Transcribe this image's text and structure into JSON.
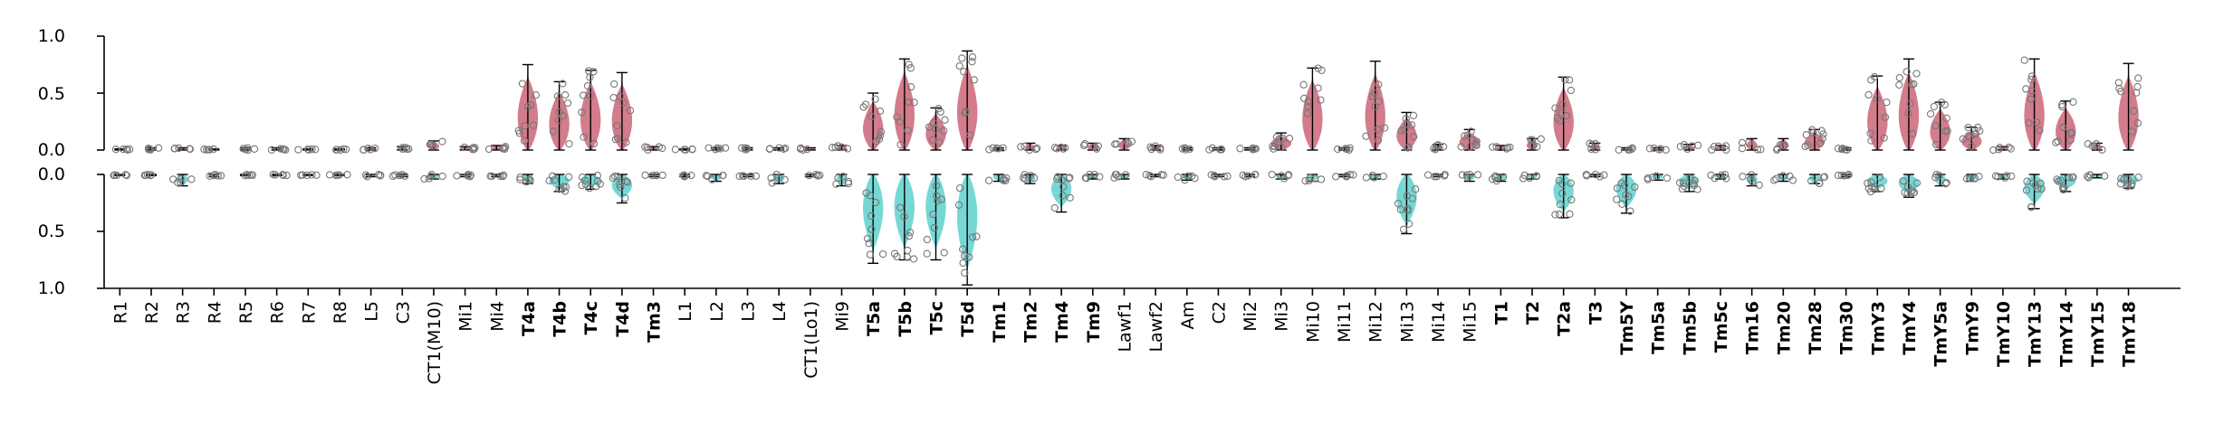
{
  "chart_data": {
    "type": "violin",
    "title": "",
    "xlabel": "",
    "ylabel": "",
    "layout": "mirrored-top-bottom",
    "top": {
      "ylim": [
        0,
        1.0
      ],
      "yticks": [
        "0.0",
        "0.5",
        "1.0"
      ],
      "color": "#c0455a"
    },
    "bottom": {
      "ylim": [
        0,
        1.0
      ],
      "yticks": [
        "0.0",
        "0.5",
        "1.0"
      ],
      "color": "#3cc8c3"
    },
    "label_colors": {
      "top": "#b0122d",
      "bottom": "#12b5ae",
      "default": "#000000"
    },
    "categories": [
      {
        "name": "R1",
        "bold": false,
        "hl": "none",
        "top": 0.01,
        "bottom": 0.01
      },
      {
        "name": "R2",
        "bold": false,
        "hl": "none",
        "top": 0.02,
        "bottom": 0.01
      },
      {
        "name": "R3",
        "bold": false,
        "hl": "none",
        "top": 0.02,
        "bottom": 0.1
      },
      {
        "name": "R4",
        "bold": false,
        "hl": "none",
        "top": 0.01,
        "bottom": 0.02
      },
      {
        "name": "R5",
        "bold": false,
        "hl": "none",
        "top": 0.02,
        "bottom": 0.01
      },
      {
        "name": "R6",
        "bold": false,
        "hl": "none",
        "top": 0.02,
        "bottom": 0.01
      },
      {
        "name": "R7",
        "bold": false,
        "hl": "none",
        "top": 0.01,
        "bottom": 0.01
      },
      {
        "name": "R8",
        "bold": false,
        "hl": "none",
        "top": 0.01,
        "bottom": 0.01
      },
      {
        "name": "L5",
        "bold": false,
        "hl": "none",
        "top": 0.02,
        "bottom": 0.02
      },
      {
        "name": "C3",
        "bold": false,
        "hl": "none",
        "top": 0.03,
        "bottom": 0.02
      },
      {
        "name": "CT1(M10)",
        "bold": false,
        "hl": "none",
        "top": 0.08,
        "bottom": 0.04
      },
      {
        "name": "Mi1",
        "bold": false,
        "hl": "none",
        "top": 0.03,
        "bottom": 0.02
      },
      {
        "name": "Mi4",
        "bold": false,
        "hl": "none",
        "top": 0.04,
        "bottom": 0.02
      },
      {
        "name": "T4a",
        "bold": true,
        "hl": "top",
        "top": 0.75,
        "bottom": 0.08
      },
      {
        "name": "T4b",
        "bold": true,
        "hl": "top",
        "top": 0.6,
        "bottom": 0.15
      },
      {
        "name": "T4c",
        "bold": true,
        "hl": "top",
        "top": 0.7,
        "bottom": 0.13
      },
      {
        "name": "T4d",
        "bold": true,
        "hl": "top",
        "top": 0.68,
        "bottom": 0.25
      },
      {
        "name": "Tm3",
        "bold": true,
        "hl": "none",
        "top": 0.03,
        "bottom": 0.02
      },
      {
        "name": "L1",
        "bold": false,
        "hl": "none",
        "top": 0.01,
        "bottom": 0.02
      },
      {
        "name": "L2",
        "bold": false,
        "hl": "none",
        "top": 0.02,
        "bottom": 0.06
      },
      {
        "name": "L3",
        "bold": false,
        "hl": "none",
        "top": 0.02,
        "bottom": 0.02
      },
      {
        "name": "L4",
        "bold": false,
        "hl": "none",
        "top": 0.02,
        "bottom": 0.08
      },
      {
        "name": "CT1(Lo1)",
        "bold": false,
        "hl": "none",
        "top": 0.02,
        "bottom": 0.02
      },
      {
        "name": "Mi9",
        "bold": false,
        "hl": "none",
        "top": 0.04,
        "bottom": 0.1
      },
      {
        "name": "T5a",
        "bold": true,
        "hl": "bottom",
        "top": 0.5,
        "bottom": 0.78
      },
      {
        "name": "T5b",
        "bold": true,
        "hl": "bottom",
        "top": 0.8,
        "bottom": 0.75
      },
      {
        "name": "T5c",
        "bold": true,
        "hl": "bottom",
        "top": 0.37,
        "bottom": 0.75
      },
      {
        "name": "T5d",
        "bold": true,
        "hl": "bottom",
        "top": 0.87,
        "bottom": 0.97
      },
      {
        "name": "Tm1",
        "bold": true,
        "hl": "none",
        "top": 0.02,
        "bottom": 0.06
      },
      {
        "name": "Tm2",
        "bold": true,
        "hl": "none",
        "top": 0.06,
        "bottom": 0.08
      },
      {
        "name": "Tm4",
        "bold": true,
        "hl": "none",
        "top": 0.04,
        "bottom": 0.33
      },
      {
        "name": "Tm9",
        "bold": true,
        "hl": "none",
        "top": 0.06,
        "bottom": 0.04
      },
      {
        "name": "Lawf1",
        "bold": false,
        "hl": "none",
        "top": 0.1,
        "bottom": 0.04
      },
      {
        "name": "Lawf2",
        "bold": false,
        "hl": "none",
        "top": 0.04,
        "bottom": 0.02
      },
      {
        "name": "Am",
        "bold": false,
        "hl": "none",
        "top": 0.02,
        "bottom": 0.05
      },
      {
        "name": "C2",
        "bold": false,
        "hl": "none",
        "top": 0.02,
        "bottom": 0.02
      },
      {
        "name": "Mi2",
        "bold": false,
        "hl": "none",
        "top": 0.02,
        "bottom": 0.02
      },
      {
        "name": "Mi3",
        "bold": false,
        "hl": "none",
        "top": 0.15,
        "bottom": 0.04
      },
      {
        "name": "Mi10",
        "bold": false,
        "hl": "none",
        "top": 0.72,
        "bottom": 0.06
      },
      {
        "name": "Mi11",
        "bold": false,
        "hl": "none",
        "top": 0.02,
        "bottom": 0.02
      },
      {
        "name": "Mi12",
        "bold": false,
        "hl": "none",
        "top": 0.78,
        "bottom": 0.04
      },
      {
        "name": "Mi13",
        "bold": false,
        "hl": "none",
        "top": 0.33,
        "bottom": 0.52
      },
      {
        "name": "Mi14",
        "bold": false,
        "hl": "none",
        "top": 0.05,
        "bottom": 0.02
      },
      {
        "name": "Mi15",
        "bold": false,
        "hl": "none",
        "top": 0.18,
        "bottom": 0.06
      },
      {
        "name": "T1",
        "bold": true,
        "hl": "none",
        "top": 0.04,
        "bottom": 0.06
      },
      {
        "name": "T2",
        "bold": true,
        "hl": "none",
        "top": 0.1,
        "bottom": 0.04
      },
      {
        "name": "T2a",
        "bold": true,
        "hl": "none",
        "top": 0.64,
        "bottom": 0.38
      },
      {
        "name": "T3",
        "bold": true,
        "hl": "none",
        "top": 0.06,
        "bottom": 0.02
      },
      {
        "name": "Tm5Y",
        "bold": true,
        "hl": "none",
        "top": 0.02,
        "bottom": 0.34
      },
      {
        "name": "Tm5a",
        "bold": true,
        "hl": "none",
        "top": 0.02,
        "bottom": 0.05
      },
      {
        "name": "Tm5b",
        "bold": true,
        "hl": "none",
        "top": 0.05,
        "bottom": 0.15
      },
      {
        "name": "Tm5c",
        "bold": true,
        "hl": "none",
        "top": 0.04,
        "bottom": 0.04
      },
      {
        "name": "Tm16",
        "bold": true,
        "hl": "none",
        "top": 0.1,
        "bottom": 0.1
      },
      {
        "name": "Tm20",
        "bold": true,
        "hl": "none",
        "top": 0.1,
        "bottom": 0.06
      },
      {
        "name": "Tm28",
        "bold": true,
        "hl": "none",
        "top": 0.18,
        "bottom": 0.08
      },
      {
        "name": "Tm30",
        "bold": true,
        "hl": "none",
        "top": 0.02,
        "bottom": 0.02
      },
      {
        "name": "TmY3",
        "bold": true,
        "hl": "none",
        "top": 0.65,
        "bottom": 0.15
      },
      {
        "name": "TmY4",
        "bold": true,
        "hl": "none",
        "top": 0.8,
        "bottom": 0.2
      },
      {
        "name": "TmY5a",
        "bold": true,
        "hl": "none",
        "top": 0.42,
        "bottom": 0.1
      },
      {
        "name": "TmY9",
        "bold": true,
        "hl": "none",
        "top": 0.2,
        "bottom": 0.06
      },
      {
        "name": "TmY10",
        "bold": true,
        "hl": "none",
        "top": 0.03,
        "bottom": 0.04
      },
      {
        "name": "TmY13",
        "bold": true,
        "hl": "none",
        "top": 0.8,
        "bottom": 0.3
      },
      {
        "name": "TmY14",
        "bold": true,
        "hl": "none",
        "top": 0.43,
        "bottom": 0.15
      },
      {
        "name": "TmY15",
        "bold": true,
        "hl": "none",
        "top": 0.06,
        "bottom": 0.03
      },
      {
        "name": "TmY18",
        "bold": true,
        "hl": "none",
        "top": 0.76,
        "bottom": 0.12
      }
    ]
  }
}
